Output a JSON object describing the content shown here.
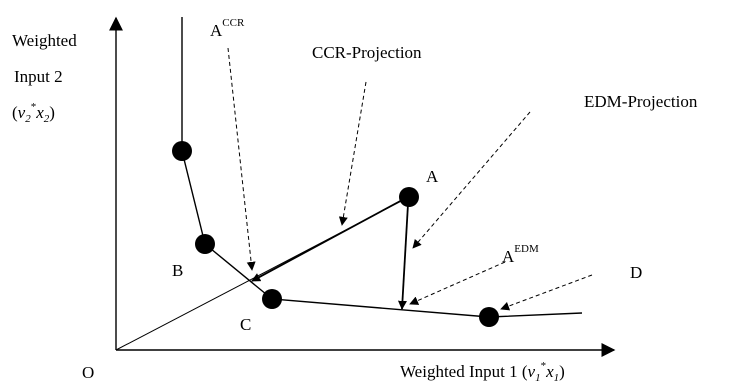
{
  "axes": {
    "y_label_line1": "Weighted",
    "y_label_line2": "Input 2",
    "y_label_var": {
      "open": "(",
      "v": "v",
      "v_sub": "2",
      "star": "*",
      "x": "x",
      "x_sub": "2",
      "close": ")"
    },
    "x_label_text": "Weighted Input 1 (",
    "x_label_var": {
      "v": "v",
      "v_sub": "1",
      "star": "*",
      "x": "x",
      "x_sub": "1",
      "close": ")"
    },
    "origin": "O"
  },
  "points": {
    "A": "A",
    "B": "B",
    "C": "C",
    "D": "D"
  },
  "projections": {
    "a_ccr_base": "A",
    "a_ccr_sup": "CCR",
    "a_edm_base": "A",
    "a_edm_sup": "EDM",
    "ccr_label": "CCR-Projection",
    "edm_label": "EDM-Projection"
  },
  "colors": {
    "ink": "#000000",
    "background": "#ffffff"
  }
}
